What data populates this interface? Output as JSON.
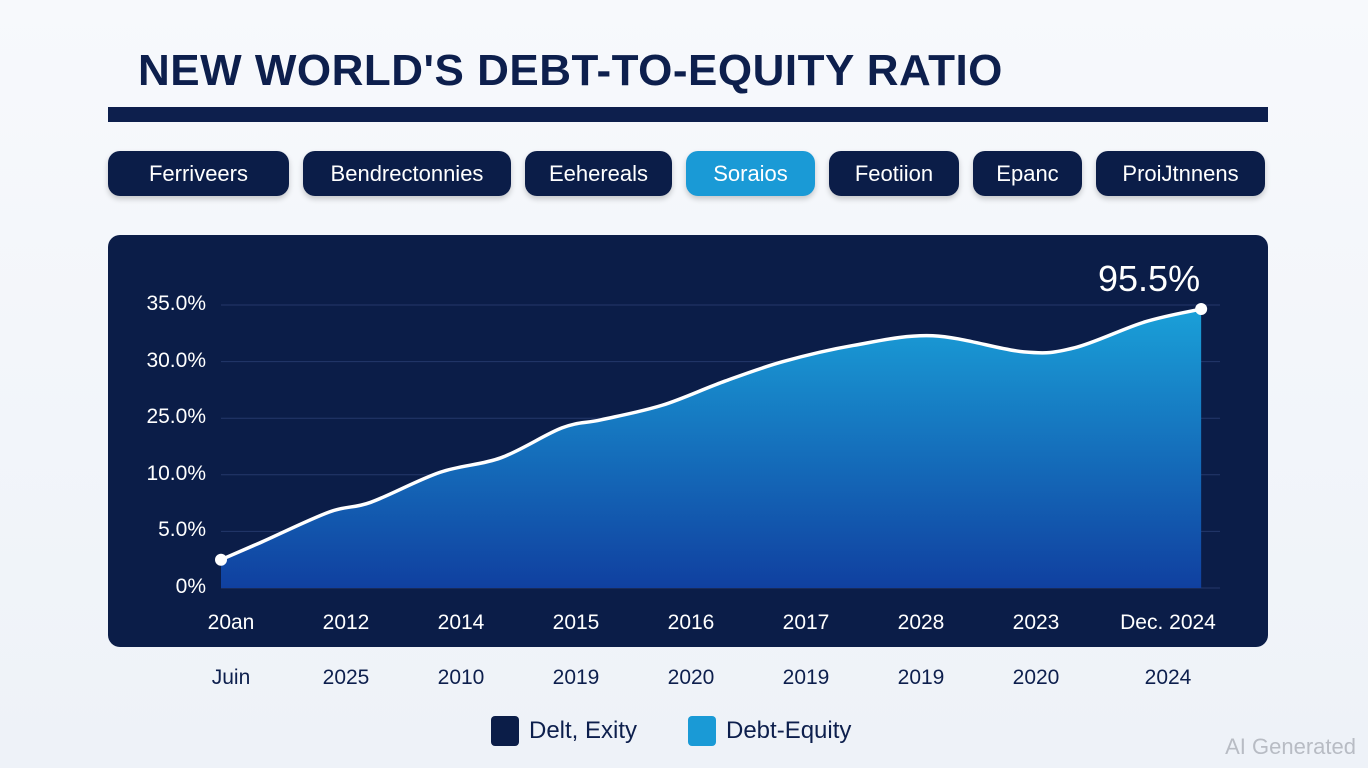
{
  "title": "NEW WORLD'S DEBT-TO-EQUITY RATIO",
  "tabs": [
    {
      "label": "Ferriveers",
      "active": false
    },
    {
      "label": "Bendrectonnies",
      "active": false
    },
    {
      "label": "Eehereals",
      "active": false
    },
    {
      "label": "Soraios",
      "active": true
    },
    {
      "label": "Feotiion",
      "active": false
    },
    {
      "label": "Epanc",
      "active": false
    },
    {
      "label": "ProiJtnnens",
      "active": false
    }
  ],
  "colors": {
    "navy": "#0b1d48",
    "accent": "#1a9ad6",
    "area_top": "#1aa0d8",
    "area_bottom": "#1040a0"
  },
  "chart_data": {
    "type": "area",
    "title": "NEW WORLD'S DEBT-TO-EQUITY RATIO",
    "yticks": [
      "0%",
      "5.0%",
      "10.0%",
      "25.0%",
      "30.0%",
      "35.0%"
    ],
    "ylim": [
      0,
      35
    ],
    "xlim": [
      0,
      8.5
    ],
    "xticks_row1": [
      "20an",
      "2012",
      "2014",
      "2015",
      "2016",
      "2017",
      "2028",
      "2023",
      "Dec. 2024"
    ],
    "xticks_row2": [
      "Juin",
      "2025",
      "2010",
      "2019",
      "2020",
      "2019",
      "2019",
      "2020",
      "2024"
    ],
    "x": [
      0,
      0.34,
      0.94,
      1.3,
      1.9,
      2.43,
      2.96,
      3.3,
      3.83,
      4.36,
      4.88,
      5.49,
      6.18,
      6.97,
      7.41,
      8.02,
      8.51
    ],
    "y": [
      3.5,
      5.6,
      9.4,
      10.6,
      14.3,
      16.1,
      19.8,
      20.8,
      22.6,
      25.5,
      28.0,
      30.0,
      31.2,
      29.2,
      29.7,
      32.9,
      34.5
    ],
    "annotation": "95.5%",
    "legend": [
      {
        "label": "Delt, Exity",
        "color": "#0b1d48"
      },
      {
        "label": "Debt-Equity",
        "color": "#1a9ad6"
      }
    ],
    "legend_position": "bottom"
  },
  "watermark": "AI Generated"
}
